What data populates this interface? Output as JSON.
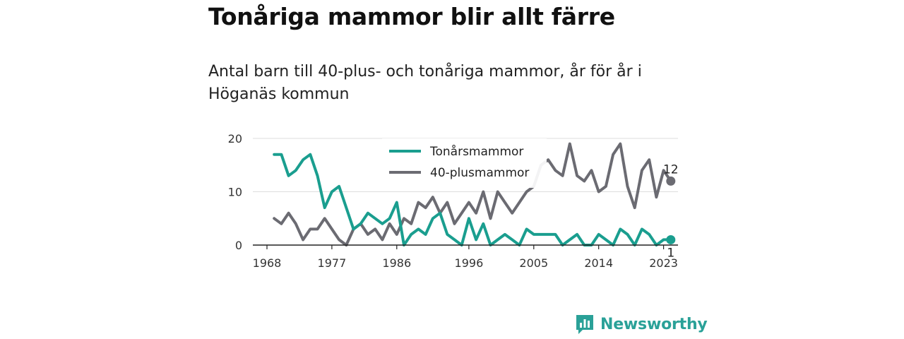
{
  "title": "Tonåriga mammor blir allt färre",
  "subtitle": "Antal barn till 40-plus- och tonåriga mammor, år för år i Höganäs kommun",
  "brand": {
    "name": "Newsworthy",
    "logo_icon": "bar-chart-icon",
    "color": "#1f9e8f"
  },
  "chart_data": {
    "type": "line",
    "x": [
      1969,
      1970,
      1971,
      1972,
      1973,
      1974,
      1975,
      1976,
      1977,
      1978,
      1979,
      1980,
      1981,
      1982,
      1983,
      1984,
      1985,
      1986,
      1987,
      1988,
      1989,
      1990,
      1991,
      1992,
      1993,
      1994,
      1995,
      1996,
      1997,
      1998,
      1999,
      2000,
      2001,
      2002,
      2003,
      2004,
      2005,
      2006,
      2007,
      2008,
      2009,
      2010,
      2011,
      2012,
      2013,
      2014,
      2015,
      2016,
      2017,
      2018,
      2019,
      2020,
      2021,
      2022,
      2023,
      2024
    ],
    "series": [
      {
        "name": "Tonårsmammor",
        "color": "#1a9e8f",
        "values": [
          17,
          17,
          13,
          14,
          16,
          17,
          13,
          7,
          10,
          11,
          7,
          3,
          4,
          6,
          5,
          4,
          5,
          8,
          0,
          2,
          3,
          2,
          5,
          6,
          2,
          1,
          0,
          5,
          1,
          4,
          0,
          1,
          2,
          1,
          0,
          3,
          2,
          2,
          2,
          2,
          0,
          1,
          2,
          0,
          0,
          2,
          1,
          0,
          3,
          2,
          0,
          3,
          2,
          0,
          1,
          1
        ]
      },
      {
        "name": "40-plusmammor",
        "color": "#6b6b72",
        "values": [
          5,
          4,
          6,
          4,
          1,
          3,
          3,
          5,
          3,
          1,
          0,
          3,
          4,
          2,
          3,
          1,
          4,
          2,
          5,
          4,
          8,
          7,
          9,
          6,
          8,
          4,
          6,
          8,
          6,
          10,
          5,
          10,
          8,
          6,
          8,
          10,
          11,
          15,
          16,
          14,
          13,
          19,
          13,
          12,
          14,
          10,
          11,
          17,
          19,
          11,
          7,
          14,
          16,
          9,
          14,
          12
        ]
      }
    ],
    "x_ticks": [
      1968,
      1977,
      1986,
      1996,
      2005,
      2014,
      2023
    ],
    "y_ticks": [
      0,
      10,
      20
    ],
    "ylim": [
      0,
      20
    ],
    "xlim": [
      1968,
      2025
    ],
    "legend_position": "top-center",
    "end_labels": [
      "1",
      "12"
    ],
    "grid": "horizontal"
  }
}
